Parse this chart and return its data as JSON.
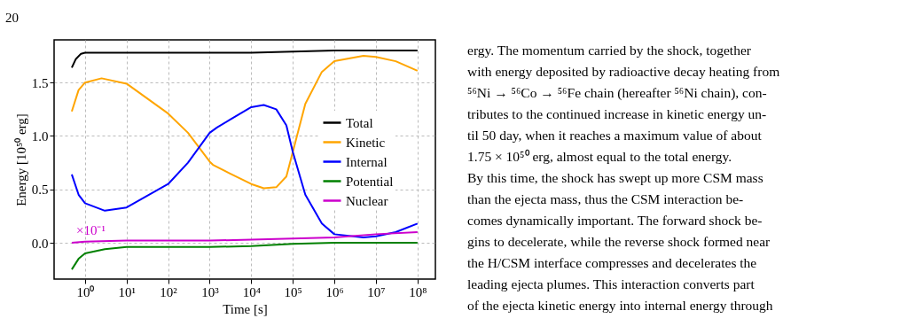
{
  "chart_data": {
    "type": "line",
    "xlabel": "Time [s]",
    "ylabel": "Energy [10⁵⁰ erg]",
    "log": "x",
    "grid": true,
    "legend": "right",
    "marker": "none",
    "line_style": "solid",
    "xlim": [
      0.18,
      270000000
    ],
    "ylim": [
      -0.34,
      1.9
    ],
    "xticks": [
      {
        "value": 1,
        "label": "10⁰"
      },
      {
        "value": 10,
        "label": "10¹"
      },
      {
        "value": 100,
        "label": "10²"
      },
      {
        "value": 1000,
        "label": "10³"
      },
      {
        "value": 10000,
        "label": "10⁴"
      },
      {
        "value": 100000,
        "label": "10⁵"
      },
      {
        "value": 1000000,
        "label": "10⁶"
      },
      {
        "value": 10000000,
        "label": "10⁷"
      },
      {
        "value": 100000000,
        "label": "10⁸"
      }
    ],
    "yticks": [
      {
        "value": 0,
        "label": "0.0"
      },
      0.5,
      {
        "value": 1,
        "label": "1.0"
      },
      1.5
    ],
    "series": [
      {
        "name": "Total",
        "color": "#000000",
        "x": [
          0.48,
          0.6,
          0.8,
          1,
          10,
          1000,
          10000,
          100000,
          1000000,
          100000000
        ],
        "values": [
          1.64,
          1.72,
          1.77,
          1.78,
          1.78,
          1.78,
          1.78,
          1.79,
          1.8,
          1.8
        ]
      },
      {
        "name": "Kinetic",
        "color": "#ffa500",
        "x": [
          0.48,
          0.7,
          1,
          2.5,
          10,
          100,
          300,
          1000,
          1200,
          3000,
          10000,
          20000,
          40000,
          70000,
          100000,
          200000,
          500000,
          1000000,
          5000000,
          10000000,
          30000000,
          100000000
        ],
        "values": [
          1.23,
          1.43,
          1.5,
          1.54,
          1.49,
          1.21,
          1.03,
          0.76,
          0.73,
          0.65,
          0.55,
          0.51,
          0.52,
          0.62,
          0.85,
          1.3,
          1.6,
          1.7,
          1.75,
          1.74,
          1.7,
          1.61
        ]
      },
      {
        "name": "Internal",
        "color": "#0000ff",
        "x": [
          0.48,
          0.7,
          1,
          3,
          10,
          100,
          300,
          1000,
          1500,
          3000,
          10000,
          20000,
          40000,
          70000,
          100000,
          200000,
          500000,
          1000000,
          5000000,
          10000000,
          30000000,
          100000000
        ],
        "values": [
          0.64,
          0.45,
          0.37,
          0.3,
          0.33,
          0.55,
          0.75,
          1.03,
          1.08,
          1.15,
          1.27,
          1.29,
          1.25,
          1.1,
          0.85,
          0.45,
          0.18,
          0.08,
          0.05,
          0.06,
          0.1,
          0.18
        ]
      },
      {
        "name": "Potential",
        "color": "#008000",
        "x": [
          0.48,
          0.7,
          1,
          3,
          10,
          1000,
          10000,
          100000,
          1000000,
          100000000
        ],
        "values": [
          -0.25,
          -0.15,
          -0.1,
          -0.06,
          -0.04,
          -0.04,
          -0.03,
          -0.01,
          0.0,
          0.0
        ]
      },
      {
        "name": "Nuclear",
        "color": "#cc00cc",
        "x": [
          0.48,
          1,
          10,
          1000,
          10000,
          100000,
          1000000,
          10000000,
          100000000
        ],
        "values": [
          0.0,
          0.01,
          0.02,
          0.02,
          0.03,
          0.04,
          0.05,
          0.08,
          0.1
        ]
      }
    ],
    "annotations": [
      "20",
      "×10⁻¹",
      "ergy.  The momentum carried by the shock, together",
      "with energy deposited by radioactive decay heating from",
      "⁵⁶Ni → ⁵⁶Co → ⁵⁶Fe chain (hereafter ⁵⁶Ni chain), con-",
      "tributes to the continued increase in kinetic energy un-",
      "til 50 day, when it reaches a maximum value of about",
      "1.75 × 10⁵⁰ erg, almost equal to the total energy.",
      "    By this time, the shock has swept up more CSM mass",
      "than the ejecta mass, thus the CSM interaction be-",
      "comes dynamically important.  The forward shock be-",
      "gins to decelerate, while the reverse shock formed near",
      "the H/CSM interface compresses and decelerates the",
      "leading ejecta plumes.  This interaction converts part",
      "of the ejecta kinetic energy into internal energy through"
    ]
  }
}
